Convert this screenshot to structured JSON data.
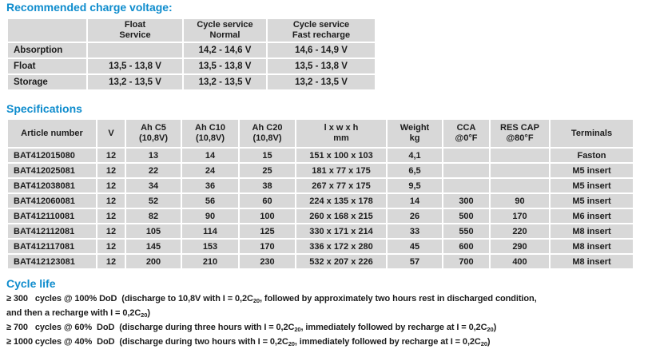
{
  "colors": {
    "heading_blue": "#0e8ccd",
    "cell_gray": "#d8d8d8",
    "text": "#1c1c1c",
    "background": "#ffffff"
  },
  "charge_voltage": {
    "title": "Recommended charge voltage:",
    "columns": [
      {
        "l1": "",
        "l2": ""
      },
      {
        "l1": "Float",
        "l2": "Service"
      },
      {
        "l1": "Cycle service",
        "l2": "Normal"
      },
      {
        "l1": "Cycle service",
        "l2": "Fast recharge"
      }
    ],
    "rows": [
      [
        "Absorption",
        "",
        "14,2 - 14,6 V",
        "14,6 - 14,9 V"
      ],
      [
        "Float",
        "13,5 - 13,8 V",
        "13,5 - 13,8 V",
        "13,5 - 13,8 V"
      ],
      [
        "Storage",
        "13,2 - 13,5 V",
        "13,2 - 13,5 V",
        "13,2 - 13,5 V"
      ]
    ]
  },
  "specifications": {
    "title": "Specifications",
    "columns": [
      {
        "l1": "Article number"
      },
      {
        "l1": "V"
      },
      {
        "l1": "Ah C5",
        "l2": "(10,8V)"
      },
      {
        "l1": "Ah C10",
        "l2": "(10,8V)"
      },
      {
        "l1": "Ah C20",
        "l2": "(10,8V)"
      },
      {
        "l1": "l x w x h",
        "l2": "mm"
      },
      {
        "l1": "Weight",
        "l2": "kg"
      },
      {
        "l1": "CCA",
        "l2": "@0°F"
      },
      {
        "l1": "RES CAP",
        "l2": "@80°F"
      },
      {
        "l1": "Terminals"
      }
    ],
    "rows": [
      [
        "BAT412015080",
        "12",
        "13",
        "14",
        "15",
        "151 x 100 x 103",
        "4,1",
        "",
        "",
        "Faston"
      ],
      [
        "BAT412025081",
        "12",
        "22",
        "24",
        "25",
        "181 x 77 x 175",
        "6,5",
        "",
        "",
        "M5 insert"
      ],
      [
        "BAT412038081",
        "12",
        "34",
        "36",
        "38",
        "267 x 77 x 175",
        "9,5",
        "",
        "",
        "M5 insert"
      ],
      [
        "BAT412060081",
        "12",
        "52",
        "56",
        "60",
        "224 x 135 x 178",
        "14",
        "300",
        "90",
        "M5 insert"
      ],
      [
        "BAT412110081",
        "12",
        "82",
        "90",
        "100",
        "260 x 168 x 215",
        "26",
        "500",
        "170",
        "M6 insert"
      ],
      [
        "BAT412112081",
        "12",
        "105",
        "114",
        "125",
        "330 x 171 x 214",
        "33",
        "550",
        "220",
        "M8 insert"
      ],
      [
        "BAT412117081",
        "12",
        "145",
        "153",
        "170",
        "336 x 172 x 280",
        "45",
        "600",
        "290",
        "M8 insert"
      ],
      [
        "BAT412123081",
        "12",
        "200",
        "210",
        "230",
        "532 x 207 x 226",
        "57",
        "700",
        "400",
        "M8 insert"
      ]
    ]
  },
  "cycle_life": {
    "title": "Cycle life",
    "lines": [
      "≥ 300   cycles @ 100% DoD  (discharge to 10,8V with I = 0,2C{20}, followed by approximately two hours rest in discharged condition,",
      "and then a recharge with I = 0,2C{20})",
      "≥ 700   cycles @ 60%  DoD  (discharge during three hours with I = 0,2C{20}, immediately followed by recharge at I = 0,2C{20})",
      "≥ 1000 cycles @ 40%  DoD  (discharge during two hours with I = 0,2C{20}, immediately followed by recharge at I = 0,2C{20})"
    ]
  }
}
